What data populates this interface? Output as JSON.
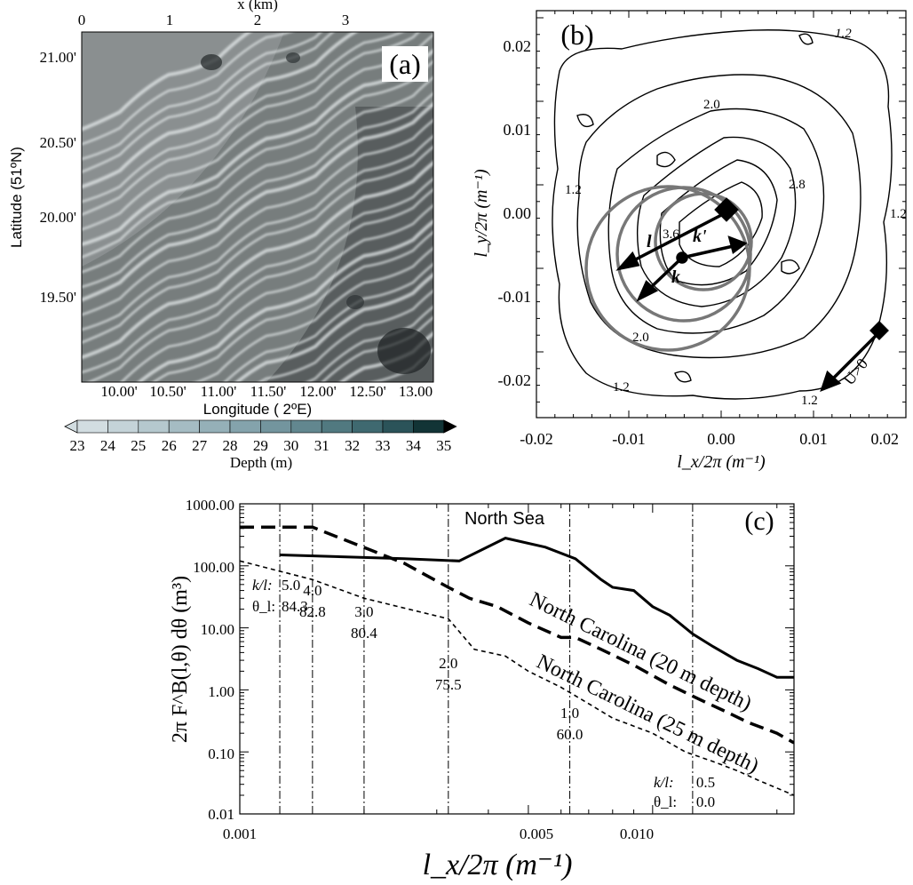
{
  "panel_a": {
    "label": "(a)",
    "x_axis_title": "x (km)",
    "x_ticks": [
      "0",
      "1",
      "2",
      "3"
    ],
    "y_axis_title": "Latitude (51ºN)",
    "y_ticks": [
      "21.00'",
      "20.50'",
      "20.00'",
      "19.50'"
    ],
    "lon_ticks": [
      "10.00'",
      "10.50'",
      "11.00'",
      "11.50'",
      "12.00'",
      "12.50'",
      "13.00"
    ],
    "lon_title": "Longitude ( 2ºE)",
    "colorbar": {
      "title": "Depth (m)",
      "values": [
        "23",
        "24",
        "25",
        "26",
        "27",
        "28",
        "29",
        "30",
        "31",
        "32",
        "33",
        "34",
        "35"
      ],
      "colors": [
        "#d2dde1",
        "#c4d3d8",
        "#b5c8ce",
        "#a5bcc3",
        "#95b0b8",
        "#84a3ac",
        "#73959e",
        "#62878f",
        "#517980",
        "#3f6970",
        "#2b5359",
        "#123436"
      ]
    }
  },
  "panel_b": {
    "label": "(b)",
    "x_axis_title": "l_x/2π (m⁻¹)",
    "y_axis_title": "l_y/2π (m⁻¹)",
    "x_ticks": [
      "-0.02",
      "-0.01",
      "0.00",
      "0.01",
      "0.02"
    ],
    "y_ticks": [
      "0.02",
      "0.01",
      "0.00",
      "-0.01",
      "-0.02"
    ],
    "contour_labels": [
      "1.2",
      "2.0",
      "2.8",
      "3.6",
      "1.2",
      "1.2",
      "2.0",
      "1.2",
      "1.2"
    ],
    "vector_labels": {
      "l": "l",
      "k": "k",
      "kp": "k'",
      "u": "U>0"
    }
  },
  "chart_data": {
    "type": "line",
    "title": "",
    "xlabel": "l_x/2π (m⁻¹)",
    "ylabel": "2π F^B(l,θ) dθ (m³)",
    "xscale": "log",
    "yscale": "log",
    "xlim": [
      0.001,
      0.022
    ],
    "ylim": [
      0.01,
      1000
    ],
    "x_ticks": [
      "0.001",
      "0.005",
      "0.010"
    ],
    "y_ticks": [
      "1000.00",
      "100.00",
      "10.00",
      "1.00",
      "0.10",
      "0.01"
    ],
    "panel_label": "(c)",
    "series": [
      {
        "name": "North Sea",
        "style": "solid",
        "x": [
          0.00125,
          0.0025,
          0.0034,
          0.0044,
          0.0055,
          0.0065,
          0.0075,
          0.008,
          0.009,
          0.01,
          0.011,
          0.0125,
          0.014,
          0.016,
          0.018,
          0.02,
          0.022
        ],
        "y": [
          150,
          130,
          120,
          280,
          200,
          130,
          60,
          45,
          40,
          22,
          16,
          8,
          5,
          3,
          2.2,
          1.6,
          1.6
        ]
      },
      {
        "name": "North Carolina (20 m depth)",
        "style": "dashed",
        "x": [
          0.001,
          0.0015,
          0.0025,
          0.0032,
          0.0036,
          0.0042,
          0.005,
          0.006,
          0.0065,
          0.0075,
          0.009,
          0.011,
          0.013,
          0.015,
          0.017,
          0.02,
          0.022
        ],
        "y": [
          420,
          420,
          110,
          45,
          30,
          22,
          12,
          7,
          7,
          4.5,
          2.5,
          1.2,
          0.7,
          0.45,
          0.3,
          0.2,
          0.14
        ]
      },
      {
        "name": "North Carolina (25 m depth)",
        "style": "dotted",
        "x": [
          0.001,
          0.0015,
          0.002,
          0.0032,
          0.0037,
          0.0044,
          0.005,
          0.006,
          0.007,
          0.008,
          0.01,
          0.012,
          0.014,
          0.016,
          0.018,
          0.022
        ],
        "y": [
          120,
          60,
          30,
          14,
          4.5,
          3.5,
          2,
          1.1,
          0.6,
          0.35,
          0.2,
          0.1,
          0.07,
          0.05,
          0.035,
          0.02
        ]
      }
    ],
    "vertical_lines": [
      {
        "x": 0.00125,
        "kl": "5.0",
        "theta": "84.3"
      },
      {
        "x": 0.0015,
        "kl": "4.0",
        "theta": "82.8"
      },
      {
        "x": 0.002,
        "kl": "3.0",
        "theta": "80.4"
      },
      {
        "x": 0.0032,
        "kl": "2.0",
        "theta": "75.5"
      },
      {
        "x": 0.0063,
        "kl": "1.0",
        "theta": "60.0"
      },
      {
        "x": 0.0125,
        "kl": "0.5",
        "theta": "0.0"
      }
    ],
    "row_labels": {
      "kl": "k/l:",
      "theta": "θ_l:"
    }
  }
}
